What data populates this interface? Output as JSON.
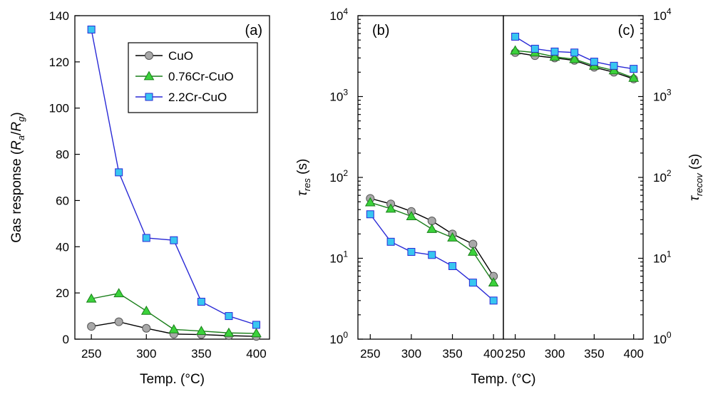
{
  "chart_data": [
    {
      "panel": "(a)",
      "type": "line",
      "xlabel": "Temp. (°C)",
      "ylabel_parts": [
        "Gas response (",
        "R",
        "a",
        "/",
        "R",
        "g",
        ")"
      ],
      "xlim": [
        235,
        412
      ],
      "ylim": [
        0,
        140
      ],
      "yscale": "linear",
      "xticks": [
        250,
        300,
        350,
        400
      ],
      "yticks": [
        0,
        20,
        40,
        60,
        80,
        100,
        120,
        140
      ],
      "x": [
        250,
        275,
        300,
        325,
        350,
        375,
        400
      ],
      "series": [
        {
          "name": "CuO",
          "marker": "circle",
          "color": "#000000",
          "fill": "#a8a8a8",
          "values": [
            5.5,
            7.5,
            4.7,
            2.2,
            2.0,
            1.5,
            1.2
          ]
        },
        {
          "name": "0.76Cr-CuO",
          "marker": "triangle",
          "color": "#1a7f1a",
          "fill": "#3bd23b",
          "values": [
            17.5,
            19.8,
            12.2,
            4.2,
            3.5,
            2.7,
            2.5
          ]
        },
        {
          "name": "2.2Cr-CuO",
          "marker": "square",
          "color": "#2a2ad6",
          "fill": "#38c6f0",
          "values": [
            134,
            72.2,
            43.8,
            42.8,
            16.2,
            10,
            6.2
          ]
        }
      ]
    },
    {
      "panel": "(b)",
      "type": "line",
      "xlabel": "Temp. (°C)",
      "ylabel_symbol": "τ",
      "ylabel_sub": "res",
      "ylabel_unit": " (s)",
      "xlim": [
        235,
        412
      ],
      "ylim": [
        1,
        10000
      ],
      "yscale": "log",
      "xticks": [
        250,
        300,
        350,
        400
      ],
      "yticks": [
        1,
        10,
        100,
        1000,
        10000
      ],
      "ytick_labels": [
        [
          "10",
          "0"
        ],
        [
          "10",
          "1"
        ],
        [
          "10",
          "2"
        ],
        [
          "10",
          "3"
        ],
        [
          "10",
          "4"
        ]
      ],
      "x": [
        250,
        275,
        300,
        325,
        350,
        375,
        400
      ],
      "series": [
        {
          "name": "CuO",
          "values": [
            55,
            47,
            38,
            29,
            20,
            15,
            6
          ]
        },
        {
          "name": "0.76Cr-CuO",
          "values": [
            49,
            41,
            33,
            23,
            18,
            12,
            5
          ]
        },
        {
          "name": "2.2Cr-CuO",
          "values": [
            35,
            16,
            12,
            11,
            8,
            5,
            3
          ]
        }
      ]
    },
    {
      "panel": "(c)",
      "type": "line",
      "xlabel": "Temp. (°C)",
      "ylabel_symbol": "τ",
      "ylabel_sub": "recov",
      "ylabel_unit": " (s)",
      "xlim": [
        235,
        412
      ],
      "ylim": [
        1,
        10000
      ],
      "yscale": "log",
      "xticks": [
        250,
        300,
        350,
        400
      ],
      "yticks": [
        1,
        10,
        100,
        1000,
        10000
      ],
      "ytick_labels": [
        [
          "10",
          "0"
        ],
        [
          "10",
          "1"
        ],
        [
          "10",
          "2"
        ],
        [
          "10",
          "3"
        ],
        [
          "10",
          "4"
        ]
      ],
      "x": [
        250,
        275,
        300,
        325,
        350,
        375,
        400
      ],
      "series": [
        {
          "name": "CuO",
          "values": [
            3500,
            3200,
            3000,
            2800,
            2300,
            2000,
            1650
          ]
        },
        {
          "name": "0.76Cr-CuO",
          "values": [
            3700,
            3500,
            3100,
            2900,
            2400,
            2100,
            1700
          ]
        },
        {
          "name": "2.2Cr-CuO",
          "values": [
            5500,
            3900,
            3600,
            3500,
            2700,
            2400,
            2200
          ]
        }
      ]
    }
  ]
}
